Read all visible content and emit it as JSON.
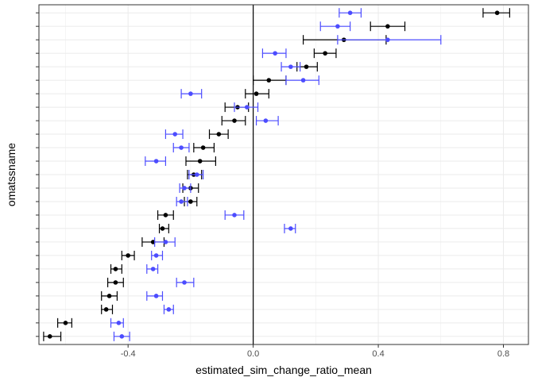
{
  "chart_data": {
    "type": "scatter",
    "subtype": "errorbar",
    "xlabel": "estimated_sim_change_ratio_mean",
    "ylabel": "omatssname",
    "xlim": [
      -0.685,
      0.88
    ],
    "x_ticks": [
      -0.4,
      0.0,
      0.4,
      0.8
    ],
    "x_tick_labels": [
      "-0.4",
      "0.0",
      "0.4",
      "0.8"
    ],
    "n_rows": 25,
    "grid": true,
    "reference_line_x": 0.0,
    "colors": {
      "black": "#000000",
      "blue": "#4c4cff"
    },
    "groups": [
      {
        "color": "black",
        "points": [
          {
            "row": 1,
            "x": 0.78,
            "low": 0.735,
            "high": 0.82
          },
          {
            "row": 2,
            "x": 0.43,
            "low": 0.375,
            "high": 0.485
          },
          {
            "row": 3,
            "x": 0.29,
            "low": 0.16,
            "high": 0.425
          },
          {
            "row": 4,
            "x": 0.23,
            "low": 0.195,
            "high": 0.265
          },
          {
            "row": 5,
            "x": 0.17,
            "low": 0.14,
            "high": 0.205
          },
          {
            "row": 6,
            "x": 0.05,
            "low": 0.0,
            "high": 0.105
          },
          {
            "row": 7,
            "x": 0.01,
            "low": -0.025,
            "high": 0.05
          },
          {
            "row": 8,
            "x": -0.05,
            "low": -0.09,
            "high": -0.015
          },
          {
            "row": 9,
            "x": -0.06,
            "low": -0.1,
            "high": -0.025
          },
          {
            "row": 10,
            "x": -0.11,
            "low": -0.14,
            "high": -0.08
          },
          {
            "row": 11,
            "x": -0.16,
            "low": -0.19,
            "high": -0.125
          },
          {
            "row": 12,
            "x": -0.17,
            "low": -0.215,
            "high": -0.12
          },
          {
            "row": 13,
            "x": -0.19,
            "low": -0.21,
            "high": -0.165
          },
          {
            "row": 14,
            "x": -0.2,
            "low": -0.225,
            "high": -0.175
          },
          {
            "row": 15,
            "x": -0.2,
            "low": -0.22,
            "high": -0.18
          },
          {
            "row": 17,
            "x": -0.29,
            "low": -0.3,
            "high": -0.27
          },
          {
            "row": 16,
            "x": -0.28,
            "low": -0.305,
            "high": -0.255
          },
          {
            "row": 18,
            "x": -0.32,
            "low": -0.355,
            "high": -0.285
          },
          {
            "row": 19,
            "x": -0.4,
            "low": -0.42,
            "high": -0.38
          },
          {
            "row": 20,
            "x": -0.44,
            "low": -0.455,
            "high": -0.42
          },
          {
            "row": 21,
            "x": -0.44,
            "low": -0.465,
            "high": -0.415
          },
          {
            "row": 22,
            "x": -0.46,
            "low": -0.485,
            "high": -0.435
          },
          {
            "row": 23,
            "x": -0.47,
            "low": -0.485,
            "high": -0.45
          },
          {
            "row": 24,
            "x": -0.6,
            "low": -0.625,
            "high": -0.58
          },
          {
            "row": 25,
            "x": -0.65,
            "low": -0.67,
            "high": -0.615
          }
        ]
      },
      {
        "color": "blue",
        "points": [
          {
            "row": 1,
            "x": 0.31,
            "low": 0.275,
            "high": 0.345
          },
          {
            "row": 2,
            "x": 0.27,
            "low": 0.215,
            "high": 0.31
          },
          {
            "row": 3,
            "x": 0.43,
            "low": 0.27,
            "high": 0.6
          },
          {
            "row": 4,
            "x": 0.07,
            "low": 0.03,
            "high": 0.105
          },
          {
            "row": 5,
            "x": 0.12,
            "low": 0.09,
            "high": 0.15
          },
          {
            "row": 6,
            "x": 0.16,
            "low": 0.105,
            "high": 0.21
          },
          {
            "row": 7,
            "x": -0.2,
            "low": -0.23,
            "high": -0.165
          },
          {
            "row": 8,
            "x": -0.02,
            "low": -0.06,
            "high": 0.015
          },
          {
            "row": 9,
            "x": 0.04,
            "low": 0.01,
            "high": 0.08
          },
          {
            "row": 10,
            "x": -0.25,
            "low": -0.28,
            "high": -0.225
          },
          {
            "row": 11,
            "x": -0.23,
            "low": -0.255,
            "high": -0.205
          },
          {
            "row": 12,
            "x": -0.31,
            "low": -0.345,
            "high": -0.28
          },
          {
            "row": 13,
            "x": -0.18,
            "low": -0.205,
            "high": -0.16
          },
          {
            "row": 14,
            "x": -0.22,
            "low": -0.235,
            "high": -0.2
          },
          {
            "row": 15,
            "x": -0.23,
            "low": -0.245,
            "high": -0.21
          },
          {
            "row": 16,
            "x": -0.06,
            "low": -0.09,
            "high": -0.03
          },
          {
            "row": 17,
            "x": 0.12,
            "low": 0.1,
            "high": 0.135
          },
          {
            "row": 18,
            "x": -0.28,
            "low": -0.315,
            "high": -0.25
          },
          {
            "row": 19,
            "x": -0.31,
            "low": -0.325,
            "high": -0.29
          },
          {
            "row": 20,
            "x": -0.32,
            "low": -0.34,
            "high": -0.305
          },
          {
            "row": 21,
            "x": -0.22,
            "low": -0.245,
            "high": -0.19
          },
          {
            "row": 22,
            "x": -0.31,
            "low": -0.34,
            "high": -0.29
          },
          {
            "row": 23,
            "x": -0.27,
            "low": -0.285,
            "high": -0.255
          },
          {
            "row": 24,
            "x": -0.43,
            "low": -0.455,
            "high": -0.415
          },
          {
            "row": 25,
            "x": -0.42,
            "low": -0.445,
            "high": -0.395
          }
        ]
      }
    ]
  }
}
